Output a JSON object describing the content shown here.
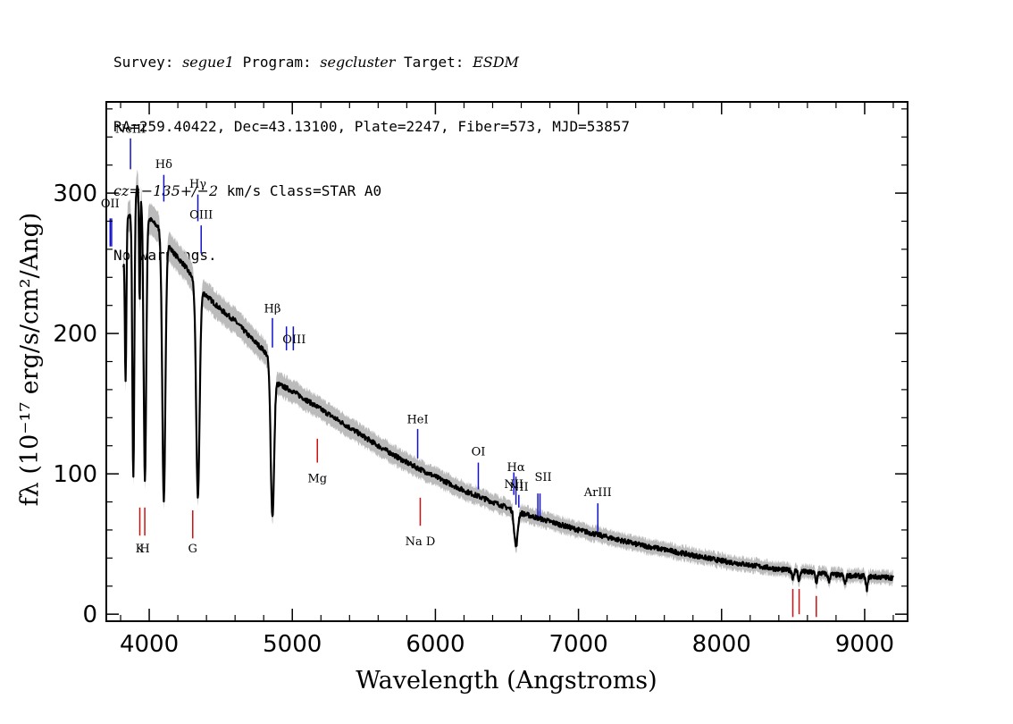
{
  "header": {
    "line1": {
      "survey_label": "Survey:",
      "survey": "segue1",
      "program_label": "Program:",
      "program": "segcluster",
      "target_label": "Target:",
      "target": "ESDM"
    },
    "line2": "RA=259.40422, Dec=43.13100, Plate=2247, Fiber=573, MJD=53857",
    "line3": {
      "cz": "cz=−135+/−2",
      "rest": " km/s Class=STAR A0"
    },
    "line4": "No warnings."
  },
  "chart_data": {
    "type": "line",
    "title": "",
    "xlabel": "Wavelength (Angstroms)",
    "ylabel": "fλ (10⁻¹⁷ erg/s/cm²/Ang)",
    "xlim": [
      3700,
      9300
    ],
    "ylim": [
      -5,
      365
    ],
    "x_ticks": [
      4000,
      5000,
      6000,
      7000,
      8000,
      9000
    ],
    "y_ticks": [
      0,
      100,
      200,
      300
    ],
    "series_color": "#000000",
    "error_band_color": "#bbbbbb",
    "continuum": [
      [
        3820,
        250
      ],
      [
        3850,
        282
      ],
      [
        3880,
        287
      ],
      [
        3900,
        300
      ],
      [
        3920,
        305
      ],
      [
        3950,
        296
      ],
      [
        4000,
        282
      ],
      [
        4050,
        277
      ],
      [
        4100,
        272
      ],
      [
        4150,
        260
      ],
      [
        4200,
        254
      ],
      [
        4250,
        248
      ],
      [
        4300,
        240
      ],
      [
        4350,
        232
      ],
      [
        4400,
        227
      ],
      [
        4500,
        217
      ],
      [
        4600,
        209
      ],
      [
        4700,
        198
      ],
      [
        4800,
        188
      ],
      [
        4860,
        180
      ],
      [
        4900,
        164
      ],
      [
        5000,
        159
      ],
      [
        5200,
        146
      ],
      [
        5400,
        133
      ],
      [
        5600,
        120
      ],
      [
        5800,
        108
      ],
      [
        6000,
        98
      ],
      [
        6200,
        88
      ],
      [
        6400,
        80
      ],
      [
        6600,
        72
      ],
      [
        6800,
        66
      ],
      [
        7000,
        60
      ],
      [
        7200,
        55
      ],
      [
        7400,
        50
      ],
      [
        7600,
        46
      ],
      [
        7800,
        42
      ],
      [
        8000,
        38
      ],
      [
        8200,
        35
      ],
      [
        8400,
        32
      ],
      [
        8600,
        30
      ],
      [
        8800,
        28
      ],
      [
        9000,
        27
      ],
      [
        9200,
        26
      ]
    ],
    "absorption_features": [
      {
        "center": 3835,
        "depth": 100,
        "width": 5
      },
      {
        "center": 3889,
        "depth": 195,
        "width": 7
      },
      {
        "center": 3933,
        "depth": 80,
        "width": 4
      },
      {
        "center": 3970,
        "depth": 195,
        "width": 9
      },
      {
        "center": 4102,
        "depth": 190,
        "width": 11
      },
      {
        "center": 4340,
        "depth": 150,
        "width": 12
      },
      {
        "center": 4861,
        "depth": 110,
        "width": 12
      },
      {
        "center": 6563,
        "depth": 25,
        "width": 12
      },
      {
        "center": 8498,
        "depth": 5,
        "width": 6
      },
      {
        "center": 8542,
        "depth": 7,
        "width": 6
      },
      {
        "center": 8662,
        "depth": 7,
        "width": 6
      },
      {
        "center": 8750,
        "depth": 5,
        "width": 6
      },
      {
        "center": 8863,
        "depth": 6,
        "width": 7
      },
      {
        "center": 9015,
        "depth": 9,
        "width": 7
      }
    ],
    "emission_lines": [
      {
        "label": "OII",
        "wave": 3727,
        "y0": 262,
        "y1": 282,
        "label_y": 290,
        "pair": true
      },
      {
        "label": "NeIII",
        "wave": 3869,
        "y0": 317,
        "y1": 339,
        "label_y": 343
      },
      {
        "label": "Hδ",
        "wave": 4102,
        "y0": 294,
        "y1": 313,
        "label_y": 318
      },
      {
        "label": "Hγ",
        "wave": 4340,
        "y0": 280,
        "y1": 299,
        "label_y": 304
      },
      {
        "label": "OIII",
        "wave": 4363,
        "y0": 257,
        "y1": 277,
        "label_y": 282
      },
      {
        "label": "Hβ",
        "wave": 4861,
        "y0": 190,
        "y1": 211,
        "label_y": 215
      },
      {
        "label": "OIII",
        "wave": 4959,
        "y0": 188,
        "y1": 205,
        "label_y": 193,
        "pair_wave": 5007
      },
      {
        "label": "HeI",
        "wave": 5876,
        "y0": 111,
        "y1": 132,
        "label_y": 136
      },
      {
        "label": "OI",
        "wave": 6300,
        "y0": 89,
        "y1": 108,
        "label_y": 113
      },
      {
        "label": "NII",
        "wave": 6548,
        "y0": 85,
        "y1": 101,
        "label_y": 90
      },
      {
        "label": "Hα",
        "wave": 6563,
        "y0": 78,
        "y1": 98,
        "label_y": 102
      },
      {
        "label": "NII",
        "wave": 6583,
        "y0": 76,
        "y1": 85,
        "label_y": 88
      },
      {
        "label": "SII",
        "wave": 6716,
        "y0": 70,
        "y1": 86,
        "label_y": 95,
        "pair_wave": 6731
      },
      {
        "label": "ArIII",
        "wave": 7135,
        "y0": 59,
        "y1": 79,
        "label_y": 84
      }
    ],
    "absorption_lines": [
      {
        "label": "K",
        "wave": 3934,
        "y0": 56,
        "y1": 76,
        "label_y": 44
      },
      {
        "label": "H",
        "wave": 3969,
        "y0": 56,
        "y1": 76,
        "label_y": 44
      },
      {
        "label": "G",
        "wave": 4304,
        "y0": 54,
        "y1": 74,
        "label_y": 44
      },
      {
        "label": "Mg",
        "wave": 5175,
        "y0": 108,
        "y1": 125,
        "label_y": 94
      },
      {
        "label": "Na  D",
        "wave": 5894,
        "y0": 63,
        "y1": 83,
        "label_y": 49
      },
      {
        "label": "",
        "wave": 8498,
        "y0": -2,
        "y1": 18
      },
      {
        "label": "",
        "wave": 8542,
        "y0": 0,
        "y1": 18
      },
      {
        "label": "",
        "wave": 8662,
        "y0": -2,
        "y1": 13
      }
    ],
    "emission_color": "#1111cc",
    "absorption_color": "#cc1111"
  }
}
